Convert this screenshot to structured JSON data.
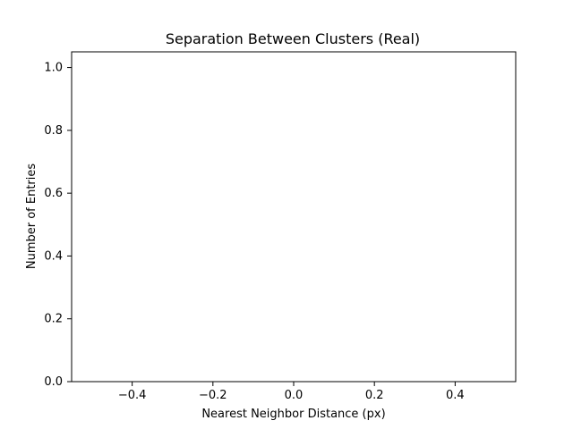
{
  "chart_data": {
    "type": "bar",
    "title": "Separation Between Clusters (Real)",
    "xlabel": "Nearest Neighbor Distance (px)",
    "ylabel": "Number of Entries",
    "xlim": [
      -0.55,
      0.55
    ],
    "ylim": [
      0.0,
      1.05
    ],
    "xticks": [
      -0.4,
      -0.2,
      0.0,
      0.2,
      0.4
    ],
    "xtick_labels": [
      "−0.4",
      "−0.2",
      "0.0",
      "0.2",
      "0.4"
    ],
    "yticks": [
      0.0,
      0.2,
      0.4,
      0.6,
      0.8,
      1.0
    ],
    "ytick_labels": [
      "0.0",
      "0.2",
      "0.4",
      "0.6",
      "0.8",
      "1.0"
    ],
    "series": [
      {
        "values": []
      }
    ],
    "grid": false,
    "legend": "none"
  }
}
